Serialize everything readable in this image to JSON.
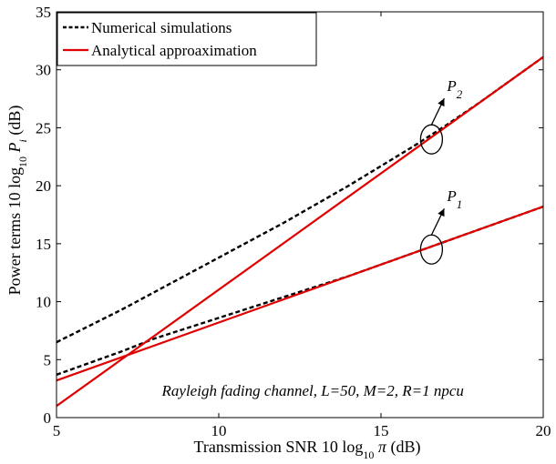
{
  "chart_data": {
    "type": "line",
    "xlabel": "Transmission SNR 10 log10 π (dB)",
    "ylabel": "Power terms 10 log10 Pi (dB)",
    "xlim": [
      5,
      20
    ],
    "ylim": [
      0,
      35
    ],
    "xticks": [
      5,
      10,
      15,
      20
    ],
    "yticks": [
      0,
      5,
      10,
      15,
      20,
      25,
      30,
      35
    ],
    "legend_position": "top-left",
    "grid": false,
    "series": [
      {
        "name": "Numerical simulations",
        "style": "dashed",
        "color": "#000000",
        "group": "P2",
        "x": [
          5,
          6,
          7,
          8,
          9,
          10,
          11,
          12,
          13,
          14,
          15,
          16,
          17,
          18,
          19,
          20
        ],
        "y": [
          6.5,
          7.9,
          9.3,
          10.8,
          12.3,
          13.8,
          15.3,
          16.8,
          18.4,
          20.0,
          21.7,
          23.4,
          25.2,
          27.1,
          29.1,
          31.1
        ]
      },
      {
        "name": "Numerical simulations",
        "style": "dashed",
        "color": "#000000",
        "group": "P1",
        "x": [
          5,
          6,
          7,
          8,
          9,
          10,
          11,
          12,
          13,
          14,
          15,
          16,
          17,
          18,
          19,
          20
        ],
        "y": [
          3.7,
          4.7,
          5.7,
          6.8,
          7.7,
          8.6,
          9.5,
          10.4,
          11.3,
          12.2,
          13.2,
          14.2,
          15.2,
          16.2,
          17.2,
          18.2
        ]
      },
      {
        "name": "Analytical approaximation",
        "style": "solid",
        "color": "#e00000",
        "group": "P2",
        "x": [
          5,
          20
        ],
        "y": [
          1.0,
          31.1
        ]
      },
      {
        "name": "Analytical approaximation",
        "style": "solid",
        "color": "#e00000",
        "group": "P1",
        "x": [
          5,
          20
        ],
        "y": [
          3.2,
          18.2
        ]
      }
    ],
    "legend": [
      {
        "label": "Numerical simulations",
        "style": "dashed",
        "color": "#000000"
      },
      {
        "label": "Analytical approaximation",
        "style": "solid",
        "color": "#e00000"
      }
    ],
    "annotations": {
      "p2_label": "P",
      "p2_sub": "2",
      "p1_label": "P",
      "p1_sub": "1",
      "p2_ellipse_at": [
        16.5,
        24.0
      ],
      "p1_ellipse_at": [
        16.5,
        14.5
      ],
      "caption": "Rayleigh fading channel, L=50, M=2, R=1 npcu"
    }
  }
}
